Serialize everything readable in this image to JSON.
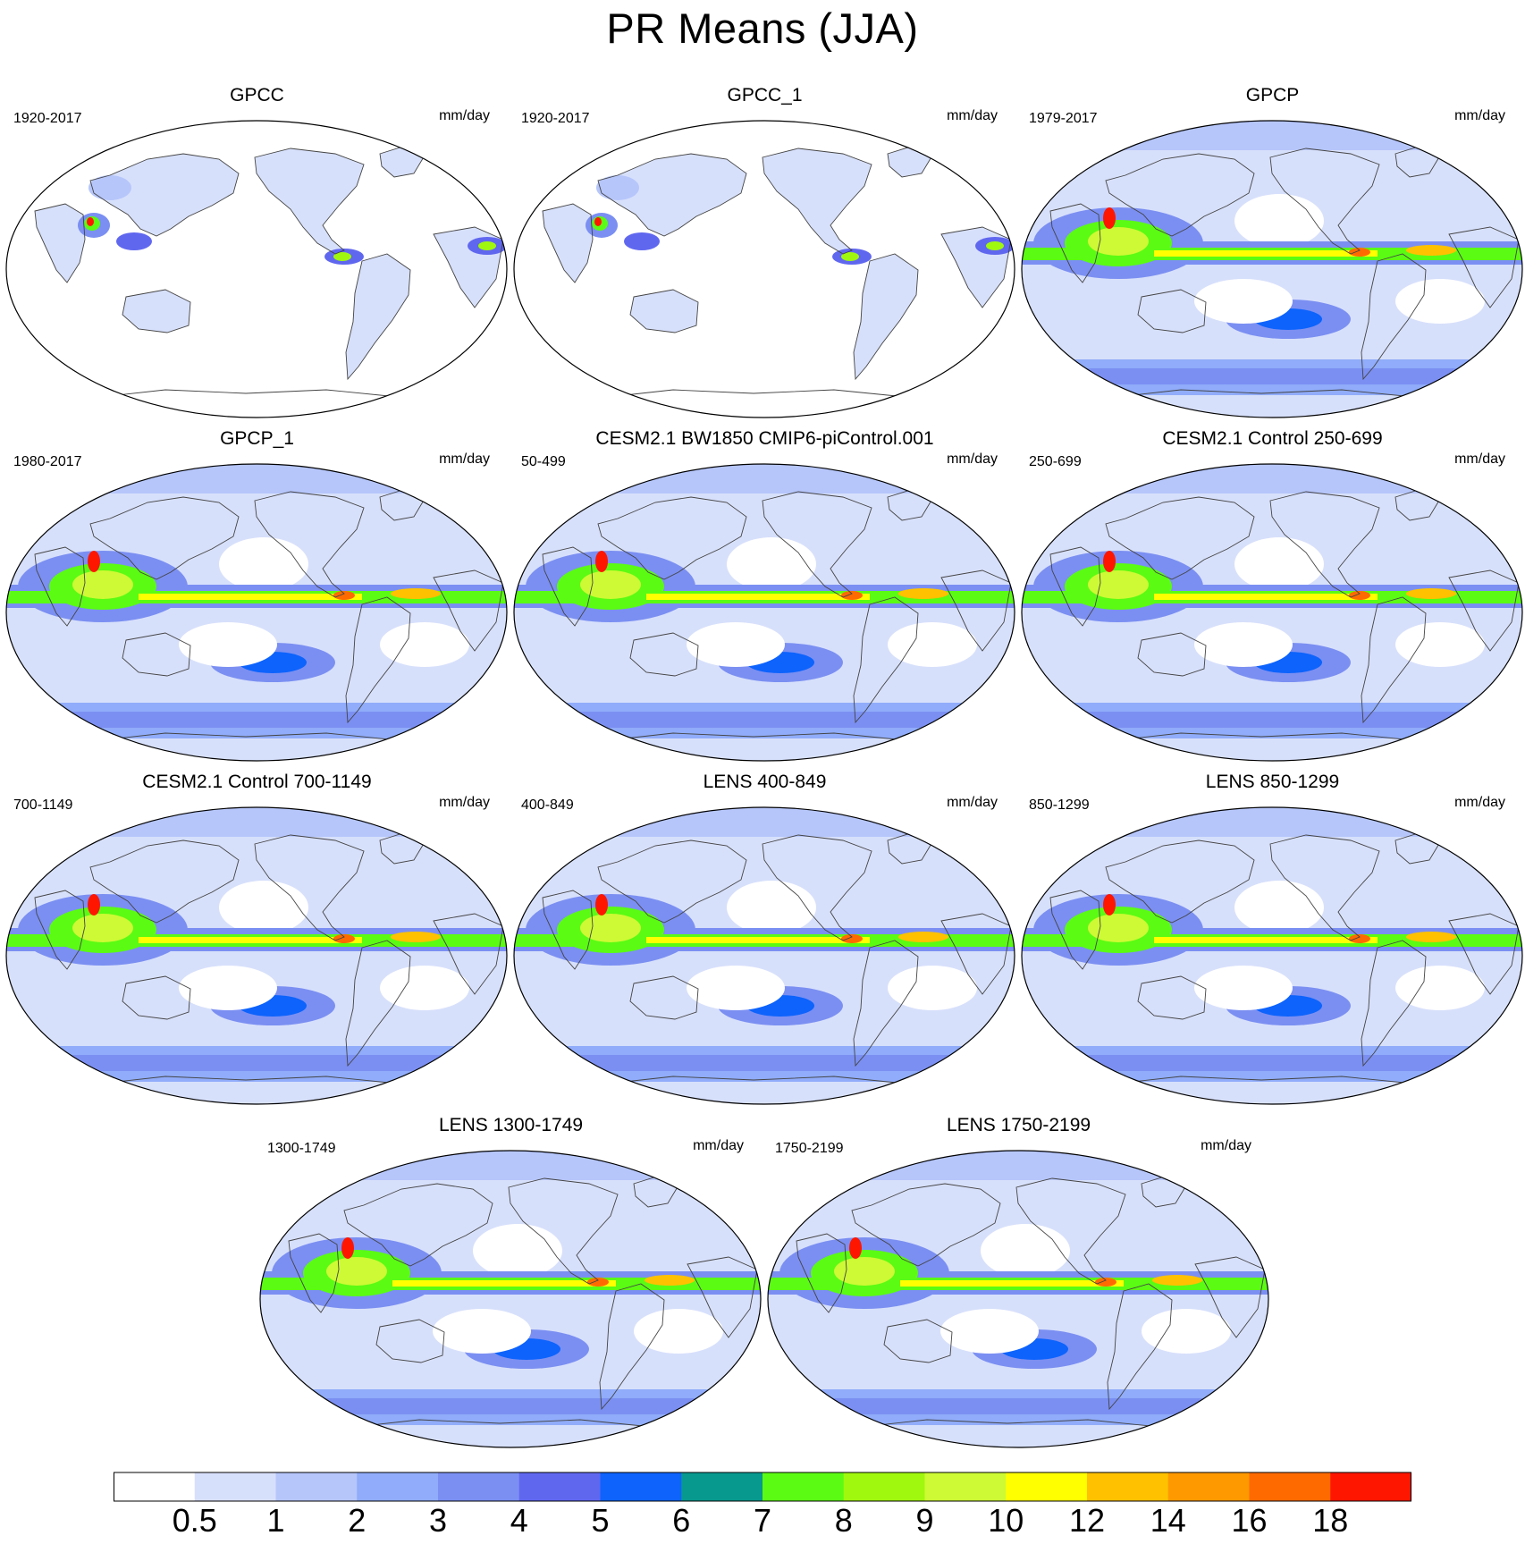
{
  "title": "PR Means (JJA)",
  "panels": [
    {
      "title": "GPCC",
      "period": "1920-2017",
      "units": "mm/day",
      "type": "land"
    },
    {
      "title": "GPCC_1",
      "period": "1920-2017",
      "units": "mm/day",
      "type": "land"
    },
    {
      "title": "GPCP",
      "period": "1979-2017",
      "units": "mm/day",
      "type": "obs"
    },
    {
      "title": "GPCP_1",
      "period": "1980-2017",
      "units": "mm/day",
      "type": "obs"
    },
    {
      "title": "CESM2.1 BW1850 CMIP6-piControl.001",
      "period": "50-499",
      "units": "mm/day",
      "type": "model"
    },
    {
      "title": "CESM2.1 Control 250-699",
      "period": "250-699",
      "units": "mm/day",
      "type": "model"
    },
    {
      "title": "CESM2.1 Control 700-1149",
      "period": "700-1149",
      "units": "mm/day",
      "type": "model"
    },
    {
      "title": "LENS 400-849",
      "period": "400-849",
      "units": "mm/day",
      "type": "model"
    },
    {
      "title": "LENS 850-1299",
      "period": "850-1299",
      "units": "mm/day",
      "type": "model"
    },
    {
      "title": "LENS 1300-1749",
      "period": "1300-1749",
      "units": "mm/day",
      "type": "model"
    },
    {
      "title": "LENS 1750-2199",
      "period": "1750-2199",
      "units": "mm/day",
      "type": "model"
    }
  ],
  "colorbar": {
    "labels": [
      "0.5",
      "1",
      "2",
      "3",
      "4",
      "5",
      "6",
      "7",
      "8",
      "9",
      "10",
      "12",
      "14",
      "16",
      "18"
    ],
    "colors": [
      "#ffffff",
      "#d7e0fb",
      "#b6c6fb",
      "#90acfa",
      "#7b8ff2",
      "#6067ef",
      "#0d63fc",
      "#07998e",
      "#5bfb13",
      "#a0f80e",
      "#cdfa34",
      "#ffff00",
      "#ffc100",
      "#ff9900",
      "#ff6a00",
      "#ff1600"
    ]
  }
}
